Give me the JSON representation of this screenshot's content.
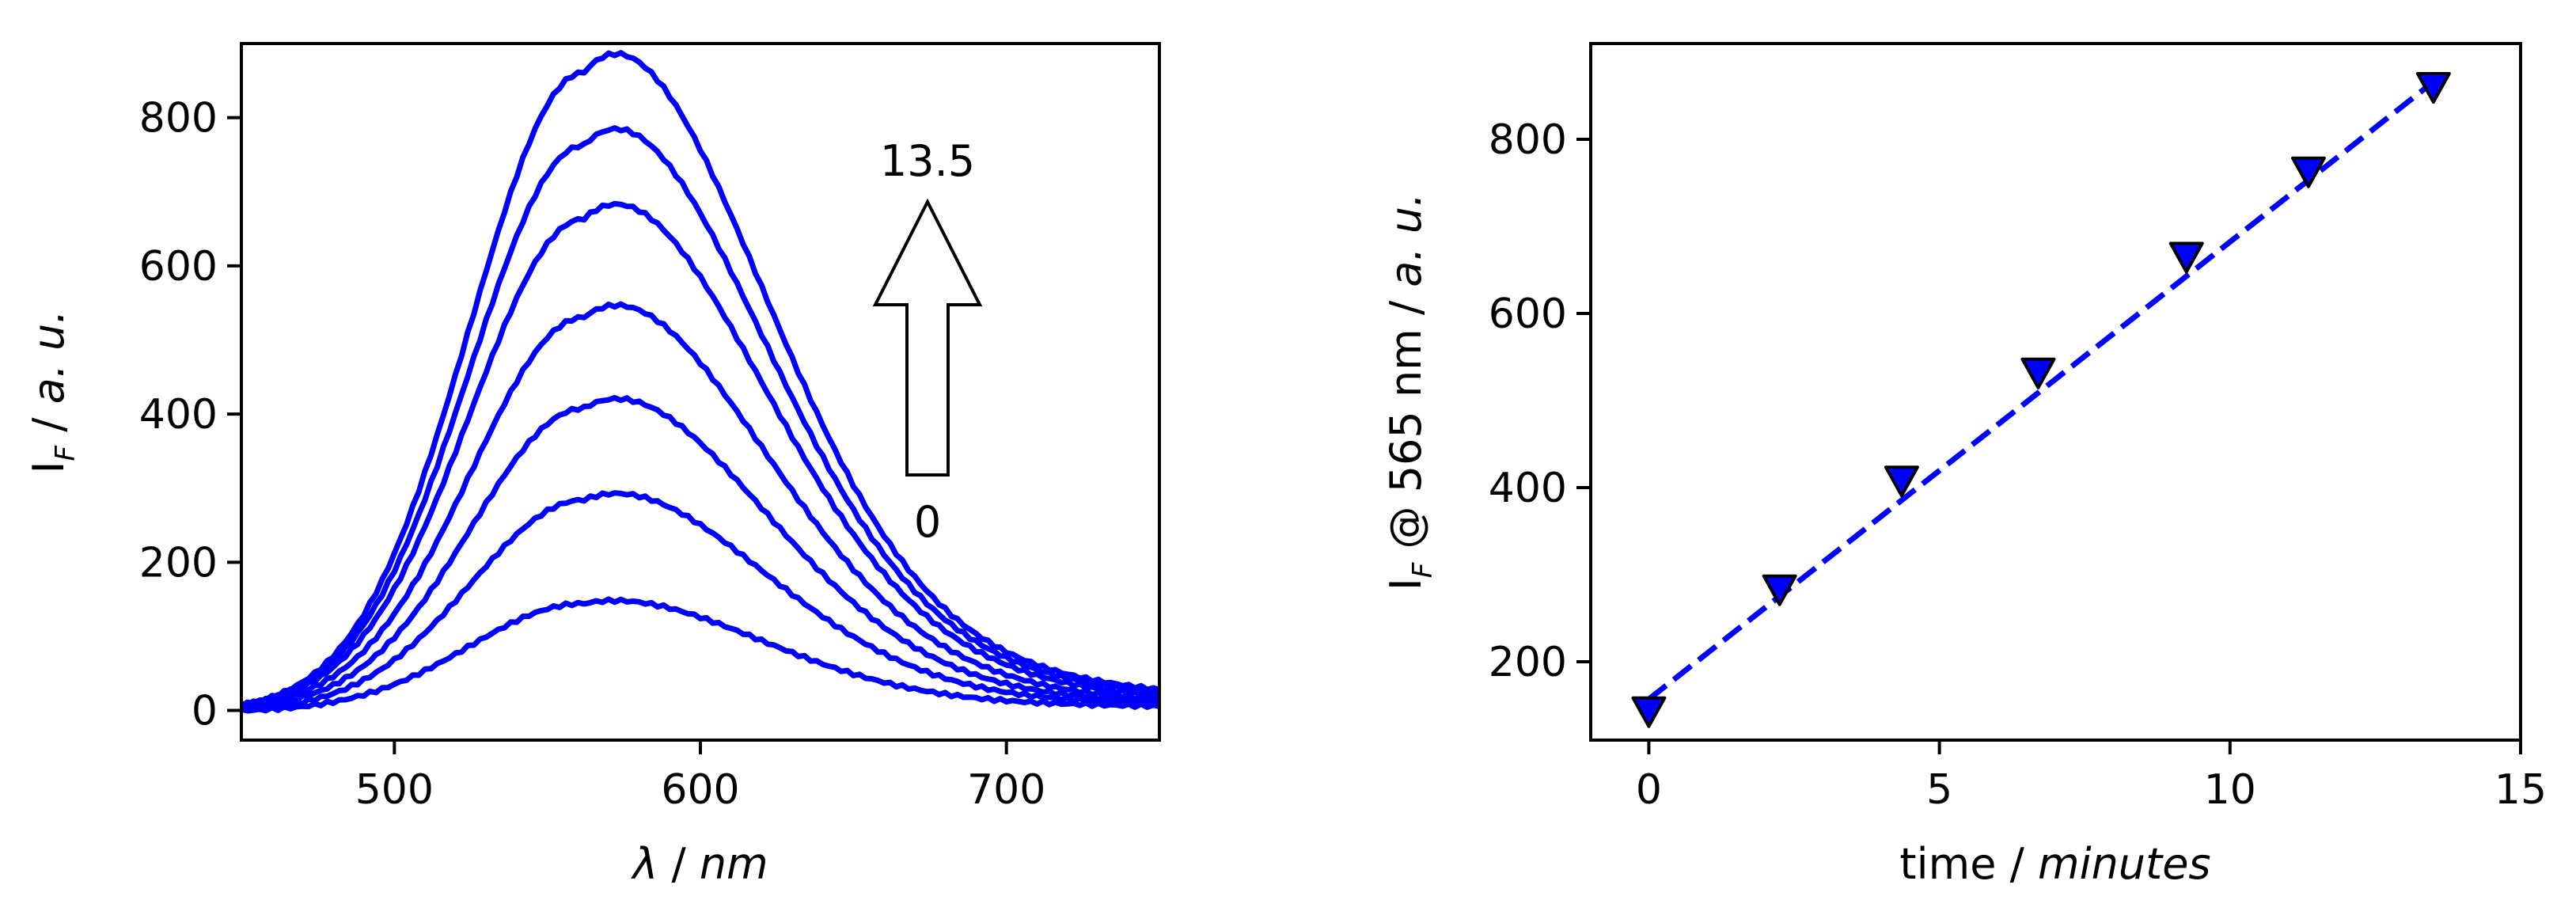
{
  "chart_data": [
    {
      "type": "line",
      "xlim": [
        450,
        750
      ],
      "ylim": [
        -40,
        900
      ],
      "x_ticks": [
        500,
        600,
        700
      ],
      "y_ticks": [
        0,
        200,
        400,
        600,
        800
      ],
      "xlabel": {
        "symbol": "λ",
        "sep": " / ",
        "unit": "nm"
      },
      "ylabel": {
        "main": "I",
        "sub": "F",
        "sep": " / ",
        "unit": "a. u."
      },
      "grid": false,
      "series_color": "#0000ff",
      "peak_wavelength_nm": 562,
      "peak_intensities": [
        143,
        283,
        408,
        532,
        665,
        763,
        860
      ],
      "series_count": 7,
      "annotation": {
        "start_label": "0",
        "end_label": "13.5"
      }
    },
    {
      "type": "scatter",
      "xlim": [
        -1,
        15
      ],
      "ylim": [
        110,
        910
      ],
      "x_ticks": [
        0,
        5,
        10,
        15
      ],
      "y_ticks": [
        200,
        400,
        600,
        800
      ],
      "xlabel": {
        "main": "time",
        "sep": " / ",
        "unit": "minutes"
      },
      "ylabel": {
        "main": "I",
        "sub": "F",
        "rest": " @ 565 nm",
        "sep": " / ",
        "unit": "a. u."
      },
      "grid": false,
      "marker_color": "#0000ff",
      "marker_edge_color": "#000000",
      "line_color": "#0000ff",
      "marker": "triangle-down",
      "x": [
        0,
        2.25,
        4.35,
        6.7,
        9.25,
        11.35,
        13.5
      ],
      "y": [
        143,
        283,
        408,
        532,
        665,
        763,
        860
      ],
      "fit": {
        "style": "dashed",
        "x": [
          0,
          13.5
        ],
        "y": [
          157,
          866
        ]
      }
    }
  ]
}
